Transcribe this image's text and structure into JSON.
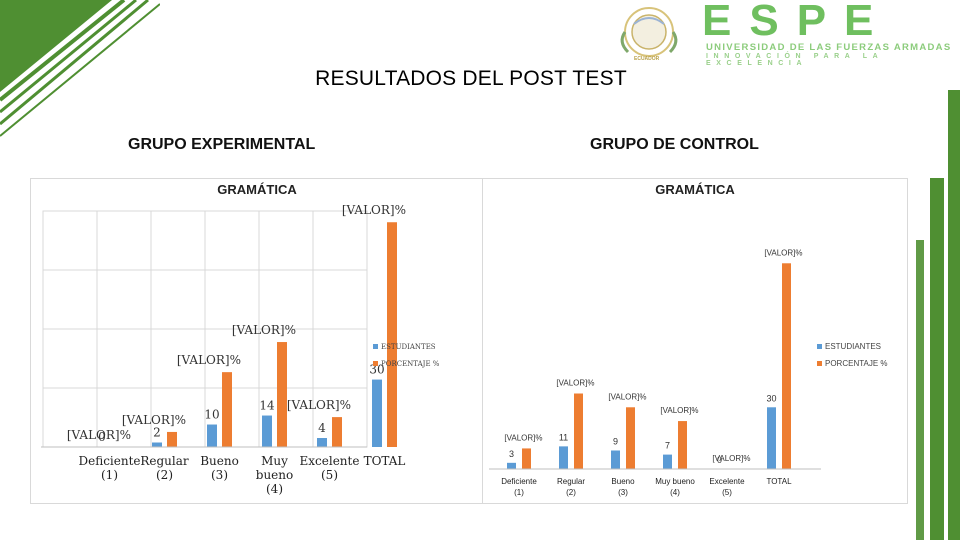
{
  "slide": {
    "title": "RESULTADOS DEL POST TEST",
    "group_experimental": "GRUPO EXPERIMENTAL",
    "group_control": "GRUPO DE CONTROL"
  },
  "logo": {
    "name": "ESPE",
    "line1": "UNIVERSIDAD DE LAS FUERZAS ARMADAS",
    "line2": "INNOVACIÓN PARA LA EXCELENCIA",
    "seal_text": "ECUADOR"
  },
  "colors": {
    "series_estudiantes": "#5b9bd5",
    "series_porcentaje": "#ed7d31",
    "accent_green": "#4f8f32",
    "logo_green": "#6fbf5f"
  },
  "chart_data": [
    {
      "type": "bar",
      "title": "GRAMÁTICA",
      "categories": [
        "Deficiente\n(1)",
        "Regular\n(2)",
        "Bueno\n(3)",
        "Muy\nbueno\n(4)",
        "Excelente\n(5)",
        "TOTAL"
      ],
      "series": [
        {
          "name": "ESTUDIANTES",
          "values": [
            0,
            2,
            10,
            14,
            4,
            30
          ],
          "labels": [
            "0",
            "2",
            "10",
            "14",
            "4",
            "30"
          ]
        },
        {
          "name": "PORCENTAJE %",
          "values": [
            0,
            6.7,
            33.3,
            46.7,
            13.3,
            100
          ],
          "labels": [
            "[VALOR]%",
            "[VALOR]%",
            "[VALOR]%",
            "[VALOR]%",
            "[VALOR]%",
            "[VALOR]%"
          ]
        }
      ],
      "ylim": [
        0,
        105
      ],
      "grid": true,
      "legend": "right"
    },
    {
      "type": "bar",
      "title": "GRAMÁTICA",
      "categories": [
        "Deficiente\n(1)",
        "Regular\n(2)",
        "Bueno\n(3)",
        "Muy bueno\n(4)",
        "Excelente\n(5)",
        "TOTAL"
      ],
      "series": [
        {
          "name": "ESTUDIANTES",
          "values": [
            3,
            11,
            9,
            7,
            0,
            30
          ],
          "labels": [
            "3",
            "11",
            "9",
            "7",
            "0",
            "30"
          ]
        },
        {
          "name": "PORCENTAJE %",
          "values": [
            10,
            36.7,
            30,
            23.3,
            0,
            100
          ],
          "labels": [
            "[VALOR]%",
            "[VALOR]%",
            "[VALOR]%",
            "[VALOR]%",
            "[VALOR]%",
            "[VALOR]%"
          ]
        }
      ],
      "ylim": [
        0,
        105
      ],
      "grid": false,
      "legend": "right"
    }
  ]
}
